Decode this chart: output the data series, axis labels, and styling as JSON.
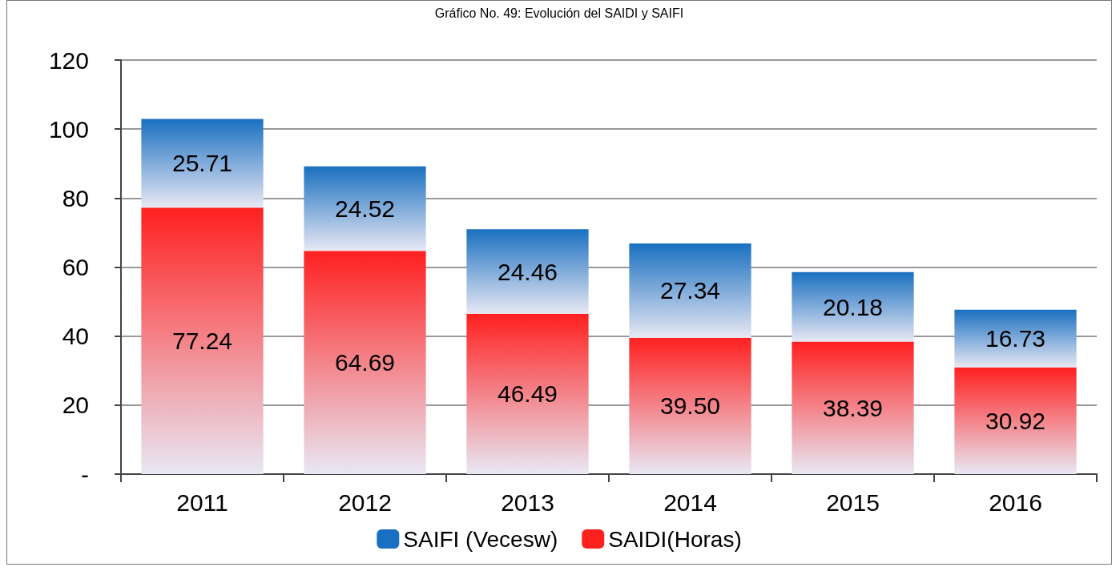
{
  "chart_data": {
    "type": "bar",
    "title": "Gráfico No. 49: Evolución del SAIDI y SAIFI",
    "categories": [
      "2011",
      "2012",
      "2013",
      "2014",
      "2015",
      "2016"
    ],
    "series": [
      {
        "name": "SAIDI(Horas)",
        "color": "#ff2020",
        "values": [
          77.24,
          64.69,
          46.49,
          39.5,
          38.39,
          30.92
        ],
        "value_labels": [
          "77.24",
          "64.69",
          "46.49",
          "39.50",
          "38.39",
          "30.92"
        ]
      },
      {
        "name": "SAIFI (Vecesw)",
        "color": "#1a70c0",
        "values": [
          25.71,
          24.52,
          24.46,
          27.34,
          20.18,
          16.73
        ],
        "value_labels": [
          "25.71",
          "24.52",
          "24.46",
          "27.34",
          "20.18",
          "16.73"
        ]
      }
    ],
    "stacked": true,
    "ylim": [
      0,
      120
    ],
    "yticks": [
      {
        "value": 0,
        "label": "-"
      },
      20,
      40,
      60,
      80,
      100,
      120
    ],
    "grid": "y",
    "legend": "bottom"
  }
}
